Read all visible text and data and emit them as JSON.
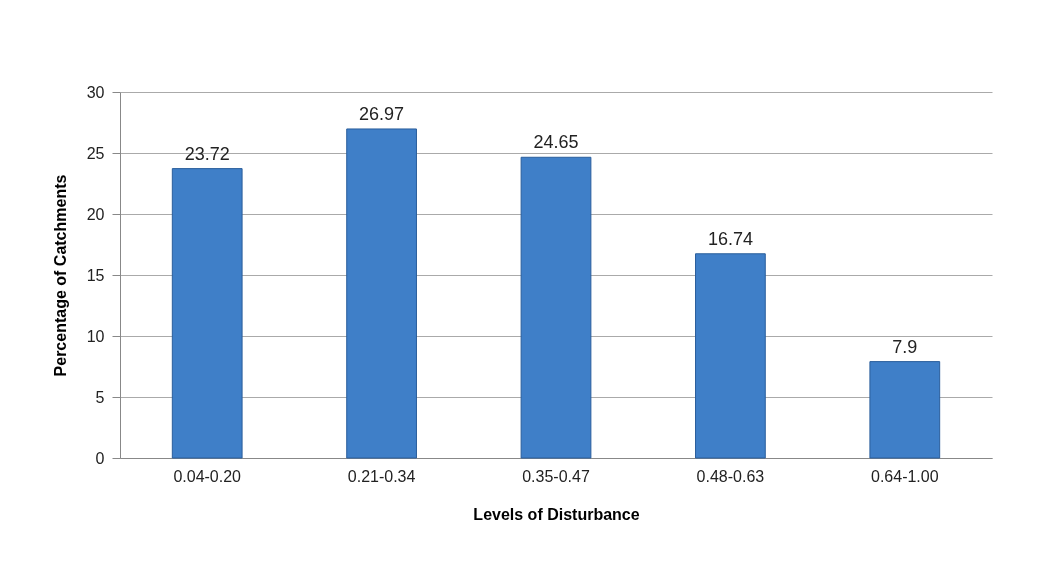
{
  "chart_data": {
    "type": "bar",
    "xlabel": "Levels of Disturbance",
    "ylabel": "Percentage  of Catchments",
    "categories": [
      "0.04-0.20",
      "0.21-0.34",
      "0.35-0.47",
      "0.48-0.63",
      "0.64-1.00"
    ],
    "values": [
      23.72,
      26.97,
      24.65,
      16.74,
      7.9
    ],
    "color": "#3f7fc8",
    "ylim": [
      0,
      30
    ],
    "yticks": [
      0,
      5,
      10,
      15,
      20,
      25,
      30
    ],
    "grid": "y",
    "data_labels": true
  }
}
